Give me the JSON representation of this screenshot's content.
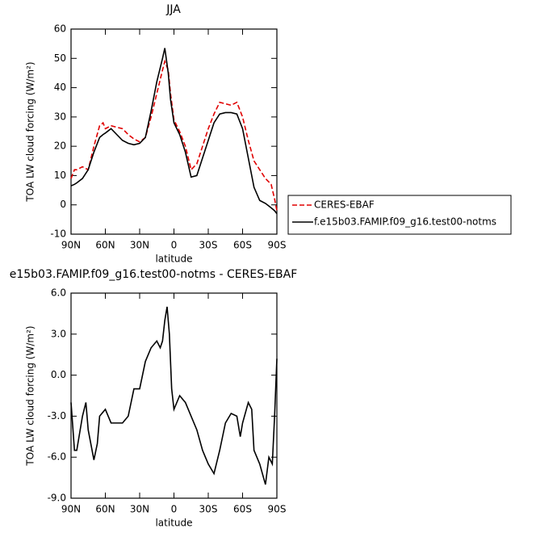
{
  "chart_data": [
    {
      "type": "line",
      "title": "JJA",
      "x_label": "latitude",
      "y_label": "TOA LW cloud forcing (W/m²)",
      "x": [
        90,
        87,
        85,
        80,
        75,
        70,
        65,
        62,
        60,
        55,
        50,
        45,
        40,
        35,
        30,
        25,
        20,
        15,
        10,
        8,
        5,
        3,
        0,
        -5,
        -10,
        -15,
        -20,
        -25,
        -30,
        -35,
        -40,
        -45,
        -50,
        -55,
        -60,
        -65,
        -70,
        -75,
        -80,
        -85,
        -88,
        -90
      ],
      "series": [
        {
          "name": "CERES-EBAF",
          "color": "#e00000",
          "linestyle": "dashed",
          "values": [
            9,
            12,
            12,
            13,
            12,
            20,
            27,
            28,
            26,
            27,
            26.5,
            26,
            24,
            22.5,
            21.5,
            23,
            30,
            38,
            46,
            49,
            46,
            38,
            29,
            25,
            20,
            12,
            14,
            20,
            26,
            31,
            35,
            34.5,
            34,
            35,
            30,
            22,
            15,
            12,
            9,
            7,
            2,
            -2
          ]
        },
        {
          "name": "f.e15b03.FAMIP.f09_g16.test00-notms",
          "color": "#000000",
          "linestyle": "solid",
          "values": [
            6.5,
            7,
            7.5,
            9,
            12,
            18,
            23,
            24,
            24.5,
            26,
            24,
            22,
            21,
            20.5,
            21,
            23,
            32,
            42,
            50,
            53.5,
            45,
            36,
            28,
            24,
            18,
            9.5,
            10,
            16,
            22,
            28,
            31,
            31.5,
            31.5,
            31,
            26,
            16,
            6,
            1.5,
            0.5,
            -1,
            -2,
            -3
          ]
        }
      ],
      "xlim": [
        90,
        -90
      ],
      "xticks": [
        {
          "value": 90,
          "label": "90N"
        },
        {
          "value": 60,
          "label": "60N"
        },
        {
          "value": 30,
          "label": "30N"
        },
        {
          "value": 0,
          "label": "0"
        },
        {
          "value": -30,
          "label": "30S"
        },
        {
          "value": -60,
          "label": "60S"
        },
        {
          "value": -90,
          "label": "90S"
        }
      ],
      "ylim": [
        -10,
        60
      ],
      "yticks": [
        -10,
        0,
        10,
        20,
        30,
        40,
        50,
        60
      ],
      "legend": "outside-right"
    },
    {
      "type": "line",
      "title": "e15b03.FAMIP.f09_g16.test00-notms - CERES-EBAF",
      "x_label": "latitude",
      "y_label": "TOA LW cloud forcing (W/m²)",
      "x": [
        90,
        87,
        85,
        80,
        77,
        75,
        70,
        67,
        65,
        60,
        55,
        50,
        45,
        40,
        35,
        30,
        25,
        20,
        15,
        12,
        10,
        8,
        6,
        4,
        2,
        0,
        -5,
        -10,
        -15,
        -20,
        -25,
        -30,
        -35,
        -40,
        -45,
        -50,
        -55,
        -58,
        -60,
        -65,
        -68,
        -70,
        -75,
        -80,
        -83,
        -86,
        -88,
        -90
      ],
      "series": [
        {
          "color": "#000000",
          "linestyle": "solid",
          "values": [
            -2,
            -5.5,
            -5.5,
            -3,
            -2,
            -4,
            -6.2,
            -5,
            -3,
            -2.5,
            -3.5,
            -3.5,
            -3.5,
            -3,
            -1,
            -1,
            1,
            2,
            2.5,
            2,
            2.5,
            4,
            5,
            3,
            -1,
            -2.5,
            -1.5,
            -2,
            -3,
            -4,
            -5.5,
            -6.5,
            -7.2,
            -5.5,
            -3.5,
            -2.8,
            -3,
            -4.5,
            -3.5,
            -2,
            -2.5,
            -5.5,
            -6.5,
            -8,
            -6,
            -6.5,
            -3,
            1.2
          ]
        }
      ],
      "xlim": [
        90,
        -90
      ],
      "xticks": [
        {
          "value": 90,
          "label": "90N"
        },
        {
          "value": 60,
          "label": "60N"
        },
        {
          "value": 30,
          "label": "30N"
        },
        {
          "value": 0,
          "label": "0"
        },
        {
          "value": -30,
          "label": "30S"
        },
        {
          "value": -60,
          "label": "60S"
        },
        {
          "value": -90,
          "label": "90S"
        }
      ],
      "ylim": [
        -9,
        6
      ],
      "yticks": [
        {
          "value": -9,
          "label": "-9.0"
        },
        {
          "value": -6,
          "label": "-6.0"
        },
        {
          "value": -3,
          "label": "-3.0"
        },
        {
          "value": 0,
          "label": "0.0"
        },
        {
          "value": 3,
          "label": "3.0"
        },
        {
          "value": 6,
          "label": "6.0"
        }
      ]
    }
  ]
}
